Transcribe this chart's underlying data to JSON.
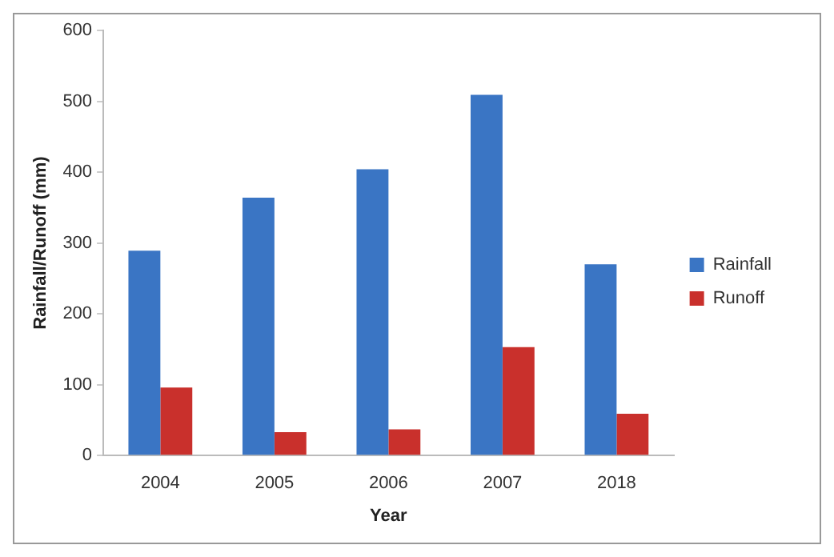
{
  "chart_data": {
    "type": "bar",
    "xlabel": "Year",
    "ylabel": "Rainfall/Runoff (mm)",
    "categories": [
      "2004",
      "2005",
      "2006",
      "2007",
      "2018"
    ],
    "series": [
      {
        "name": "Rainfall",
        "color": "#3a75c4",
        "values": [
          289,
          364,
          404,
          509,
          270
        ]
      },
      {
        "name": "Runoff",
        "color": "#c9302c",
        "values": [
          96,
          33,
          37,
          153,
          59
        ]
      }
    ],
    "ylim": [
      0,
      600
    ],
    "yticks": [
      0,
      100,
      200,
      300,
      400,
      500,
      600
    ],
    "grid": false,
    "legend": "right"
  }
}
